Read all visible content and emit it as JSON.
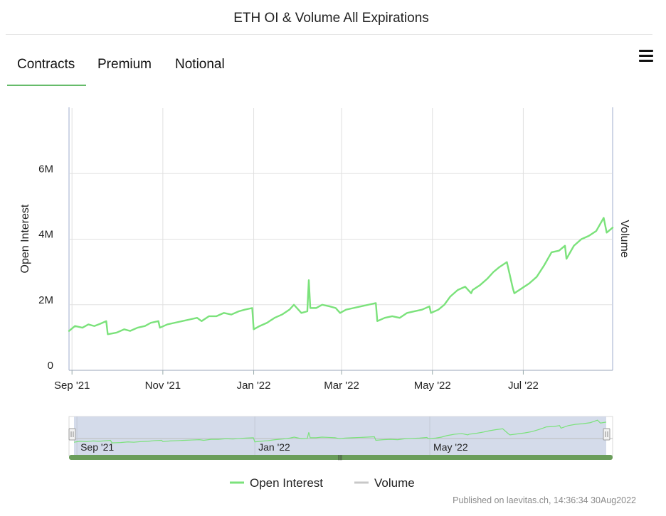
{
  "title": "ETH OI & Volume All Expirations",
  "tabs": [
    {
      "label": "Contracts",
      "active": true
    },
    {
      "label": "Premium",
      "active": false
    },
    {
      "label": "Notional",
      "active": false
    }
  ],
  "menu_icon": "hamburger-menu-icon",
  "credit": "Published on laevitas.ch, 14:36:34 30Aug2022",
  "colors": {
    "open_interest": "#7be27b",
    "volume": "#c8c8c8",
    "tab_underline": "#66bb6a",
    "navigator_mask": "#d4dbea",
    "navigator_scrollbar": "#6a9d5a"
  },
  "chart_data": {
    "type": "line",
    "title": "ETH OI & Volume All Expirations",
    "ylabel": "Open Interest",
    "y2label": "Volume",
    "ylim": [
      0,
      8000000
    ],
    "yticks": [
      0,
      2000000,
      4000000,
      6000000
    ],
    "ytick_labels": [
      "0",
      "2M",
      "4M",
      "6M"
    ],
    "xlim": [
      "2021-08-30",
      "2022-08-30"
    ],
    "xticks": [
      "2021-09-01",
      "2021-11-01",
      "2022-01-01",
      "2022-03-01",
      "2022-05-01",
      "2022-07-01"
    ],
    "xtick_labels": [
      "Sep '21",
      "Nov '21",
      "Jan '22",
      "Mar '22",
      "May '22",
      "Jul '22"
    ],
    "grid": true,
    "legend_position": "bottom-center",
    "series": [
      {
        "name": "Open Interest",
        "x": [
          "2021-08-30",
          "2021-09-03",
          "2021-09-08",
          "2021-09-12",
          "2021-09-16",
          "2021-09-20",
          "2021-09-24",
          "2021-09-25",
          "2021-10-01",
          "2021-10-06",
          "2021-10-10",
          "2021-10-15",
          "2021-10-20",
          "2021-10-24",
          "2021-10-29",
          "2021-10-30",
          "2021-11-04",
          "2021-11-09",
          "2021-11-14",
          "2021-11-19",
          "2021-11-24",
          "2021-11-27",
          "2021-12-02",
          "2021-12-07",
          "2021-12-12",
          "2021-12-17",
          "2021-12-22",
          "2021-12-26",
          "2021-12-31",
          "2022-01-01",
          "2022-01-05",
          "2022-01-10",
          "2022-01-15",
          "2022-01-20",
          "2022-01-25",
          "2022-01-28",
          "2022-02-02",
          "2022-02-06",
          "2022-02-07",
          "2022-02-08",
          "2022-02-12",
          "2022-02-16",
          "2022-02-21",
          "2022-02-25",
          "2022-02-28",
          "2022-03-04",
          "2022-03-09",
          "2022-03-14",
          "2022-03-19",
          "2022-03-24",
          "2022-03-25",
          "2022-03-30",
          "2022-04-04",
          "2022-04-09",
          "2022-04-14",
          "2022-04-19",
          "2022-04-24",
          "2022-04-29",
          "2022-04-30",
          "2022-05-05",
          "2022-05-09",
          "2022-05-13",
          "2022-05-18",
          "2022-05-23",
          "2022-05-27",
          "2022-05-28",
          "2022-06-02",
          "2022-06-07",
          "2022-06-11",
          "2022-06-15",
          "2022-06-20",
          "2022-06-24",
          "2022-06-25",
          "2022-06-30",
          "2022-07-05",
          "2022-07-10",
          "2022-07-15",
          "2022-07-20",
          "2022-07-25",
          "2022-07-29",
          "2022-07-30",
          "2022-08-04",
          "2022-08-09",
          "2022-08-14",
          "2022-08-19",
          "2022-08-24",
          "2022-08-26",
          "2022-08-30"
        ],
        "values": [
          1200000,
          1350000,
          1300000,
          1400000,
          1350000,
          1420000,
          1500000,
          1100000,
          1150000,
          1250000,
          1200000,
          1300000,
          1350000,
          1450000,
          1500000,
          1300000,
          1400000,
          1450000,
          1500000,
          1550000,
          1600000,
          1500000,
          1650000,
          1650000,
          1750000,
          1700000,
          1800000,
          1850000,
          1900000,
          1250000,
          1350000,
          1450000,
          1600000,
          1700000,
          1850000,
          2000000,
          1750000,
          1800000,
          2750000,
          1900000,
          1900000,
          2000000,
          1950000,
          1900000,
          1750000,
          1850000,
          1900000,
          1950000,
          2000000,
          2050000,
          1500000,
          1600000,
          1650000,
          1600000,
          1750000,
          1800000,
          1850000,
          1950000,
          1750000,
          1850000,
          2000000,
          2250000,
          2450000,
          2550000,
          2350000,
          2450000,
          2600000,
          2800000,
          3000000,
          3150000,
          3300000,
          2500000,
          2350000,
          2500000,
          2650000,
          2850000,
          3200000,
          3600000,
          3650000,
          3800000,
          3400000,
          3800000,
          4000000,
          4100000,
          4250000,
          4650000,
          4200000,
          4350000
        ]
      },
      {
        "name": "Volume",
        "x": [],
        "values": []
      }
    ],
    "navigator": {
      "xtick_labels": [
        "Sep '21",
        "Jan '22",
        "May '22"
      ],
      "range": [
        "2021-08-30",
        "2022-08-30"
      ]
    }
  }
}
